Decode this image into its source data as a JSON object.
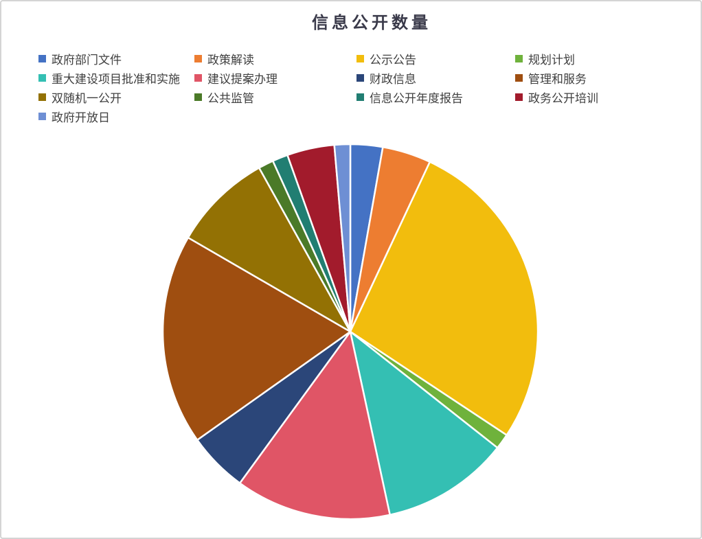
{
  "chart": {
    "title": "信息公开数量"
  },
  "chart_data": {
    "type": "pie",
    "title": "信息公开数量",
    "legend_position": "top-left",
    "legend_rows": 4,
    "start_angle_deg": 0,
    "direction": "clockwise",
    "data_labels_shown": false,
    "series": [
      {
        "label": "政府部门文件",
        "color": "#4472C4",
        "angle_deg": 10.0,
        "percent": 2.8
      },
      {
        "label": "政策解读",
        "color": "#ED7D31",
        "angle_deg": 15.1,
        "percent": 4.2
      },
      {
        "label": "公示公告",
        "color": "#F2BD0D",
        "angle_deg": 98.4,
        "percent": 27.3
      },
      {
        "label": "规划计划",
        "color": "#6FB23C",
        "angle_deg": 4.8,
        "percent": 1.3
      },
      {
        "label": "重大建设项目批准和实施",
        "color": "#34BFB3",
        "angle_deg": 39.5,
        "percent": 11.0
      },
      {
        "label": "建议提案办理",
        "color": "#E05566",
        "angle_deg": 48.3,
        "percent": 13.4
      },
      {
        "label": "财政信息",
        "color": "#2B4679",
        "angle_deg": 18.6,
        "percent": 5.2
      },
      {
        "label": "管理和服务",
        "color": "#9F4E10",
        "angle_deg": 65.4,
        "percent": 18.2
      },
      {
        "label": "双随机一公开",
        "color": "#937104",
        "angle_deg": 30.8,
        "percent": 8.6
      },
      {
        "label": "公共监管",
        "color": "#4B7A28",
        "angle_deg": 4.7,
        "percent": 1.3
      },
      {
        "label": "信息公开年度报告",
        "color": "#217E72",
        "angle_deg": 4.8,
        "percent": 1.3
      },
      {
        "label": "政务公开培训",
        "color": "#A21B2C",
        "angle_deg": 14.7,
        "percent": 4.1
      },
      {
        "label": "政府开放日",
        "color": "#6E8FD4",
        "angle_deg": 4.9,
        "percent": 1.4
      }
    ]
  }
}
